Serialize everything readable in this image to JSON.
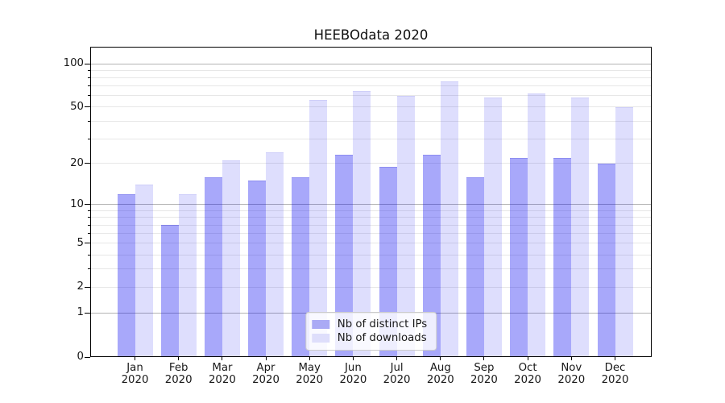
{
  "chart_data": {
    "type": "bar",
    "title": "HEEBOdata 2020",
    "categories": [
      "Jan 2020",
      "Feb 2020",
      "Mar 2020",
      "Apr 2020",
      "May 2020",
      "Jun 2020",
      "Jul 2020",
      "Aug 2020",
      "Sep 2020",
      "Oct 2020",
      "Nov 2020",
      "Dec 2020"
    ],
    "series": [
      {
        "name": "Nb of distinct IPs",
        "key": "ips",
        "color_hex": "#aaaaf5",
        "fill_rgba": "rgba(0,0,240,0.34)",
        "edge_rgba": "rgba(20,20,200,0.18)",
        "values": [
          12,
          7,
          16,
          15,
          16,
          23,
          19,
          23,
          16,
          22,
          22,
          20
        ]
      },
      {
        "name": "Nb of downloads",
        "key": "downloads",
        "color_hex": "#dedefb",
        "fill_rgba": "rgba(0,0,240,0.13)",
        "edge_rgba": "rgba(20,20,200,0.08)",
        "values": [
          14,
          12,
          21,
          24,
          56,
          65,
          60,
          75,
          58,
          62,
          58,
          50
        ]
      }
    ],
    "yscale": "log1p",
    "ylim": [
      0,
      131
    ],
    "yticks_labeled": [
      0,
      1,
      2,
      5,
      10,
      20,
      50,
      100
    ],
    "yticks_major": [
      0,
      1,
      10,
      100
    ],
    "yticks_minor": [
      3,
      4,
      6,
      7,
      8,
      9,
      30,
      40,
      60,
      70,
      80,
      90
    ],
    "grid_major_values": [
      1,
      10,
      100
    ],
    "grid_minor_values": [
      2,
      3,
      4,
      5,
      6,
      7,
      8,
      9,
      20,
      30,
      40,
      50,
      60,
      70,
      80,
      90
    ],
    "grid_major_color": "#b3b3b3",
    "grid_minor_color": "#e7e7e7",
    "grid": true,
    "legend_position": "lower center"
  }
}
